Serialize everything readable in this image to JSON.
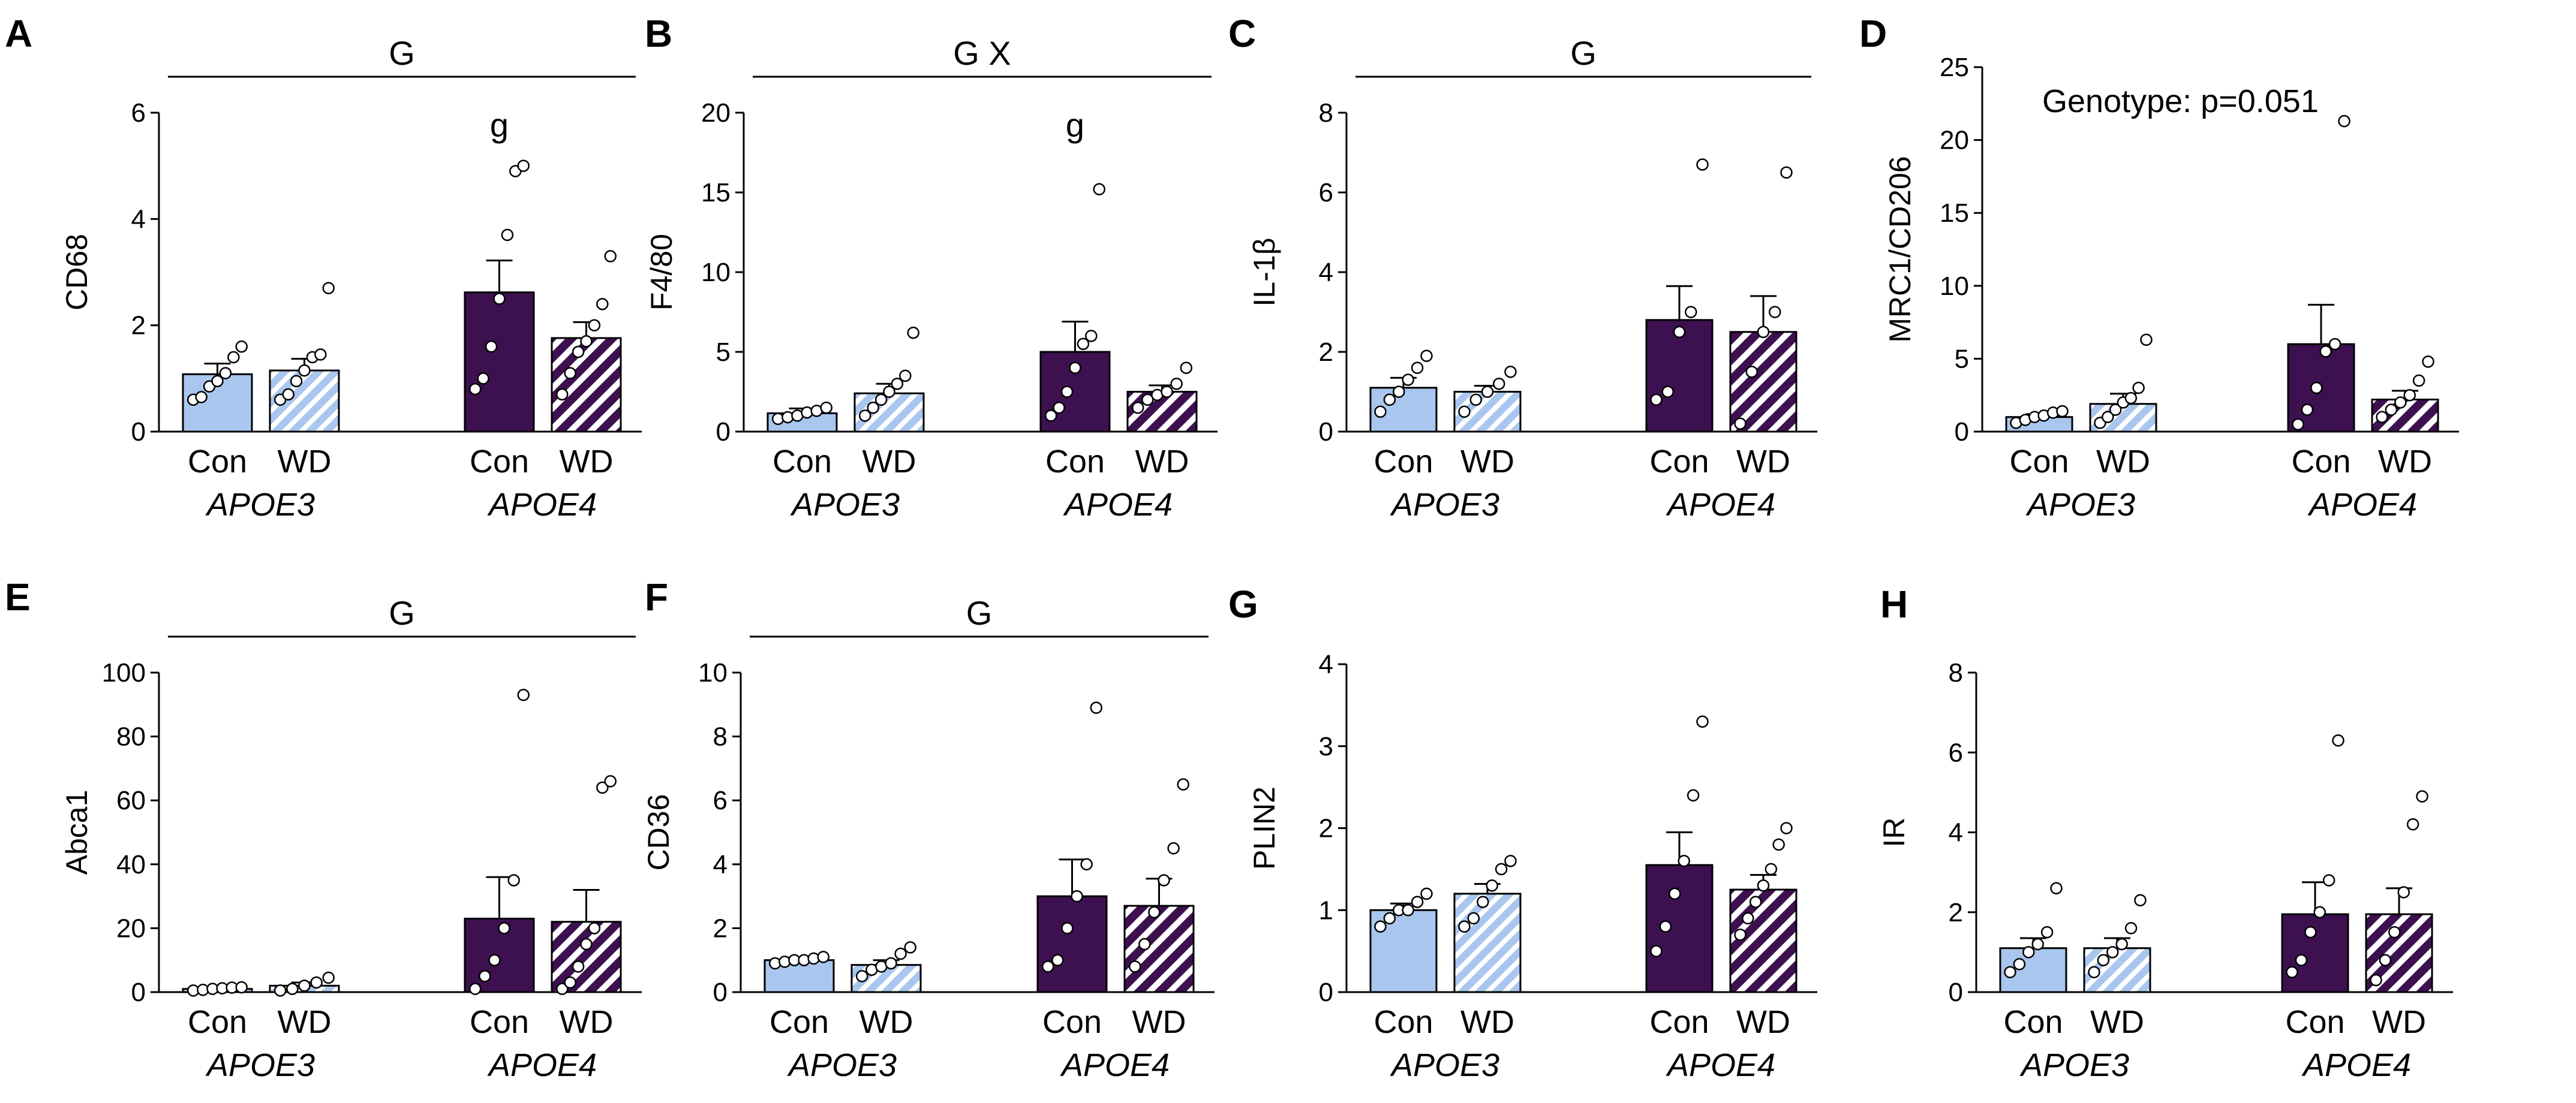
{
  "colors": {
    "apoe3": "#a9c6ee",
    "apoe4": "#3d1050",
    "stripe": "#ffffff",
    "ink": "#000000"
  },
  "legend": {
    "categories": [
      "Con",
      "WD",
      "Con",
      "WD"
    ],
    "groups": [
      "APOE3",
      "APOE4"
    ]
  },
  "chart_data": [
    {
      "type": "bar",
      "panel": "A",
      "ylabel": "CD68",
      "ylim": [
        0,
        6
      ],
      "yticks": [
        0,
        2,
        4,
        6
      ],
      "categories": [
        "APOE3 Con",
        "APOE3 WD",
        "APOE4 Con",
        "APOE4 WD"
      ],
      "values": [
        1.08,
        1.15,
        2.62,
        1.76
      ],
      "errors": [
        0.2,
        0.22,
        0.6,
        0.3
      ],
      "points": [
        [
          0.6,
          0.65,
          0.85,
          0.95,
          1.1,
          1.4,
          1.6
        ],
        [
          0.6,
          0.7,
          0.95,
          1.15,
          1.4,
          1.45,
          2.7
        ],
        [
          0.8,
          1.0,
          1.6,
          2.5,
          3.7,
          4.9,
          5.0
        ],
        [
          0.7,
          1.1,
          1.5,
          1.7,
          2.0,
          2.4,
          3.3
        ]
      ],
      "overall": {
        "text": "G",
        "span": [
          0,
          3
        ]
      },
      "marks": [
        {
          "bar": 2,
          "text": "g"
        }
      ]
    },
    {
      "type": "bar",
      "panel": "B",
      "ylabel": "F4/80",
      "ylim": [
        0,
        20
      ],
      "yticks": [
        0,
        5,
        10,
        15,
        20
      ],
      "categories": [
        "APOE3 Con",
        "APOE3 WD",
        "APOE4 Con",
        "APOE4 WD"
      ],
      "values": [
        1.15,
        2.4,
        5.0,
        2.5
      ],
      "errors": [
        0.3,
        0.6,
        1.9,
        0.4
      ],
      "points": [
        [
          0.8,
          0.9,
          1.0,
          1.2,
          1.3,
          1.5
        ],
        [
          1.0,
          1.5,
          2.0,
          2.5,
          3.0,
          3.5,
          6.2
        ],
        [
          1.0,
          1.5,
          2.5,
          4.0,
          5.5,
          6.0,
          15.2
        ],
        [
          1.5,
          2.0,
          2.3,
          2.5,
          3.0,
          4.0
        ]
      ],
      "overall": {
        "text": "G X",
        "span": [
          0,
          3
        ]
      },
      "marks": [
        {
          "bar": 2,
          "text": "g"
        }
      ]
    },
    {
      "type": "bar",
      "panel": "C",
      "ylabel": "IL-1β",
      "ylim": [
        0,
        8
      ],
      "yticks": [
        0,
        2,
        4,
        6,
        8
      ],
      "categories": [
        "APOE3 Con",
        "APOE3 WD",
        "APOE4 Con",
        "APOE4 WD"
      ],
      "values": [
        1.1,
        1.0,
        2.8,
        2.5
      ],
      "errors": [
        0.25,
        0.15,
        0.85,
        0.9
      ],
      "points": [
        [
          0.5,
          0.8,
          1.0,
          1.3,
          1.6,
          1.9
        ],
        [
          0.5,
          0.8,
          1.0,
          1.2,
          1.5
        ],
        [
          0.8,
          1.0,
          2.5,
          3.0,
          6.7
        ],
        [
          0.2,
          1.5,
          2.5,
          3.0,
          6.5
        ]
      ],
      "overall": {
        "text": "G",
        "span": [
          0,
          3
        ]
      },
      "marks": []
    },
    {
      "type": "bar",
      "panel": "D",
      "ylabel": "MRC1/CD206",
      "ylim": [
        0,
        25
      ],
      "yticks": [
        0,
        5,
        10,
        15,
        20,
        25
      ],
      "categories": [
        "APOE3 Con",
        "APOE3 WD",
        "APOE4 Con",
        "APOE4 WD"
      ],
      "values": [
        1.0,
        1.9,
        6.0,
        2.2
      ],
      "errors": [
        0.2,
        0.7,
        2.7,
        0.6
      ],
      "points": [
        [
          0.6,
          0.8,
          1.0,
          1.1,
          1.3,
          1.4
        ],
        [
          0.6,
          1.0,
          1.5,
          2.0,
          2.3,
          3.0,
          6.3
        ],
        [
          0.5,
          1.5,
          3.0,
          5.5,
          6.0,
          21.3
        ],
        [
          1.0,
          1.5,
          2.0,
          2.5,
          3.5,
          4.8
        ]
      ],
      "overall": null,
      "marks": [],
      "annotation": "Genotype: p=0.051"
    },
    {
      "type": "bar",
      "panel": "E",
      "ylabel": "Abca1",
      "ylim": [
        0,
        100
      ],
      "yticks": [
        0,
        20,
        40,
        60,
        80,
        100
      ],
      "categories": [
        "APOE3 Con",
        "APOE3 WD",
        "APOE4 Con",
        "APOE4 WD"
      ],
      "values": [
        1.0,
        2.0,
        23.0,
        22.0
      ],
      "errors": [
        0.3,
        1.0,
        13.0,
        10.0
      ],
      "points": [
        [
          0.5,
          0.7,
          1.0,
          1.2,
          1.4,
          1.5
        ],
        [
          0.5,
          1.0,
          2.0,
          3.0,
          4.5
        ],
        [
          1.0,
          5.0,
          10.0,
          20.0,
          35.0,
          93.0
        ],
        [
          1.0,
          3.0,
          8.0,
          15.0,
          20.0,
          64.0,
          66.0
        ]
      ],
      "overall": {
        "text": "G",
        "span": [
          0,
          3
        ]
      },
      "marks": []
    },
    {
      "type": "bar",
      "panel": "F",
      "ylabel": "CD36",
      "ylim": [
        0,
        10
      ],
      "yticks": [
        0,
        2,
        4,
        6,
        8,
        10
      ],
      "categories": [
        "APOE3 Con",
        "APOE3 WD",
        "APOE4 Con",
        "APOE4 WD"
      ],
      "values": [
        1.0,
        0.85,
        3.0,
        2.7
      ],
      "errors": [
        0.08,
        0.15,
        1.15,
        0.85
      ],
      "points": [
        [
          0.9,
          0.95,
          1.0,
          1.0,
          1.05,
          1.1
        ],
        [
          0.5,
          0.7,
          0.8,
          0.9,
          1.2,
          1.4
        ],
        [
          0.8,
          1.0,
          2.0,
          3.0,
          4.0,
          8.9
        ],
        [
          0.8,
          1.5,
          2.5,
          3.5,
          4.5,
          6.5
        ]
      ],
      "overall": {
        "text": "G",
        "span": [
          0,
          3
        ]
      },
      "marks": []
    },
    {
      "type": "bar",
      "panel": "G",
      "ylabel": "PLIN2",
      "ylim": [
        0,
        4
      ],
      "yticks": [
        0,
        1,
        2,
        3,
        4
      ],
      "categories": [
        "APOE3 Con",
        "APOE3 WD",
        "APOE4 Con",
        "APOE4 WD"
      ],
      "values": [
        1.0,
        1.2,
        1.55,
        1.25
      ],
      "errors": [
        0.08,
        0.12,
        0.4,
        0.18
      ],
      "points": [
        [
          0.8,
          0.9,
          1.0,
          1.0,
          1.1,
          1.2
        ],
        [
          0.8,
          0.9,
          1.1,
          1.3,
          1.5,
          1.6
        ],
        [
          0.5,
          0.8,
          1.2,
          1.6,
          2.4,
          3.3
        ],
        [
          0.7,
          0.9,
          1.1,
          1.3,
          1.5,
          1.8,
          2.0
        ]
      ],
      "overall": null,
      "marks": []
    },
    {
      "type": "bar",
      "panel": "H",
      "ylabel": "IR",
      "ylim": [
        0,
        8
      ],
      "yticks": [
        0,
        2,
        4,
        6,
        8
      ],
      "categories": [
        "APOE3 Con",
        "APOE3 WD",
        "APOE4 Con",
        "APOE4 WD"
      ],
      "values": [
        1.1,
        1.1,
        1.95,
        1.95
      ],
      "errors": [
        0.25,
        0.25,
        0.8,
        0.65
      ],
      "points": [
        [
          0.5,
          0.7,
          1.0,
          1.2,
          1.5,
          2.6
        ],
        [
          0.5,
          0.8,
          1.0,
          1.2,
          1.6,
          2.3
        ],
        [
          0.5,
          0.8,
          1.5,
          2.0,
          2.8,
          6.3
        ],
        [
          0.3,
          0.8,
          1.5,
          2.5,
          4.2,
          4.9
        ]
      ],
      "overall": null,
      "marks": []
    }
  ]
}
